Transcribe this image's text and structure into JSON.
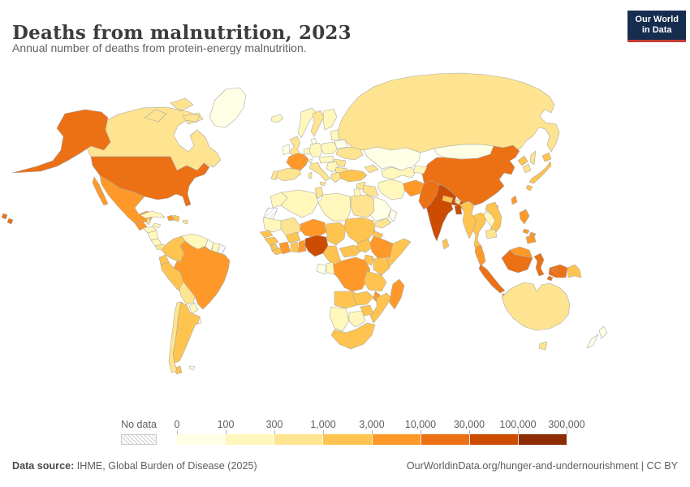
{
  "header": {
    "title": "Deaths from malnutrition, 2023",
    "subtitle": "Annual number of deaths from protein-energy malnutrition.",
    "logo": {
      "line1": "Our World",
      "line2": "in Data",
      "bg_color": "#162D4F",
      "accent_color": "#C53C35"
    }
  },
  "legend": {
    "no_data_label": "No data",
    "tick_labels": [
      "0",
      "100",
      "300",
      "1,000",
      "3,000",
      "10,000",
      "30,000",
      "100,000",
      "300,000"
    ]
  },
  "footer": {
    "datasource_label": "Data source:",
    "datasource_value": " IHME, Global Burden of Disease (2025)",
    "attribution": "OurWorldinData.org/hunger-and-undernourishment | CC BY"
  },
  "chart_data": {
    "type": "heatmap",
    "subtype": "choropleth_world_map",
    "title": "Deaths from malnutrition, 2023",
    "unit": "deaths",
    "scale": "logarithmic bins",
    "legend_position": "bottom",
    "bins": [
      {
        "range": "0–100",
        "color": "#FFFFE5"
      },
      {
        "range": "100–300",
        "color": "#FFF7BC"
      },
      {
        "range": "300–1,000",
        "color": "#FEE391"
      },
      {
        "range": "1,000–3,000",
        "color": "#FEC44F"
      },
      {
        "range": "3,000–10,000",
        "color": "#FE9929"
      },
      {
        "range": "10,000–30,000",
        "color": "#EC7014"
      },
      {
        "range": "30,000–100,000",
        "color": "#CC4C02"
      },
      {
        "range": "100,000–300,000",
        "color": "#8C2D04"
      }
    ],
    "no_data": {
      "label": "No data",
      "pattern": "diagonal-hatch"
    },
    "countries": [
      {
        "id": "greenland",
        "name": "Greenland",
        "bin": 0
      },
      {
        "id": "canada",
        "name": "Canada",
        "bin": 2
      },
      {
        "id": "usa",
        "name": "United States",
        "bin": 5
      },
      {
        "id": "mexico",
        "name": "Mexico",
        "bin": 4
      },
      {
        "id": "guatemala",
        "name": "Guatemala",
        "bin": 4
      },
      {
        "id": "belize",
        "name": "Belize",
        "bin": 2
      },
      {
        "id": "honduras",
        "name": "Honduras",
        "bin": 1
      },
      {
        "id": "nicaragua",
        "name": "Nicaragua",
        "bin": 1
      },
      {
        "id": "costa-rica",
        "name": "Costa Rica",
        "bin": 1
      },
      {
        "id": "panama",
        "name": "Panama",
        "bin": 2
      },
      {
        "id": "cuba",
        "name": "Cuba",
        "bin": 1
      },
      {
        "id": "jamaica",
        "name": "Jamaica",
        "bin": 1
      },
      {
        "id": "haiti",
        "name": "Haiti",
        "bin": 4
      },
      {
        "id": "dominican-republic",
        "name": "Dominican Republic",
        "bin": 3
      },
      {
        "id": "puerto-rico",
        "name": "Puerto Rico",
        "bin": 2
      },
      {
        "id": "colombia",
        "name": "Colombia",
        "bin": 3
      },
      {
        "id": "venezuela",
        "name": "Venezuela",
        "bin": 1
      },
      {
        "id": "guyana",
        "name": "Guyana",
        "bin": 0
      },
      {
        "id": "suriname",
        "name": "Suriname",
        "bin": 1
      },
      {
        "id": "french-guiana",
        "name": "French Guiana",
        "bin": "no-data"
      },
      {
        "id": "ecuador",
        "name": "Ecuador",
        "bin": 3
      },
      {
        "id": "peru",
        "name": "Peru",
        "bin": 3
      },
      {
        "id": "brazil",
        "name": "Brazil",
        "bin": 4
      },
      {
        "id": "bolivia",
        "name": "Bolivia",
        "bin": 2
      },
      {
        "id": "paraguay",
        "name": "Paraguay",
        "bin": 1
      },
      {
        "id": "uruguay",
        "name": "Uruguay",
        "bin": 0
      },
      {
        "id": "chile",
        "name": "Chile",
        "bin": 2
      },
      {
        "id": "argentina",
        "name": "Argentina",
        "bin": 3
      },
      {
        "id": "falkland-islands",
        "name": "Falkland Islands",
        "bin": 0
      },
      {
        "id": "iceland",
        "name": "Iceland",
        "bin": 1
      },
      {
        "id": "norway",
        "name": "Norway",
        "bin": 1
      },
      {
        "id": "sweden",
        "name": "Sweden",
        "bin": 2
      },
      {
        "id": "finland",
        "name": "Finland",
        "bin": 1
      },
      {
        "id": "denmark",
        "name": "Denmark",
        "bin": 0
      },
      {
        "id": "united-kingdom",
        "name": "United Kingdom",
        "bin": 2
      },
      {
        "id": "ireland",
        "name": "Ireland",
        "bin": 0
      },
      {
        "id": "netherlands-belgium",
        "name": "Netherlands / Belgium",
        "bin": 1
      },
      {
        "id": "germany",
        "name": "Germany",
        "bin": 1
      },
      {
        "id": "poland",
        "name": "Poland",
        "bin": 1
      },
      {
        "id": "baltic-states",
        "name": "Baltic states",
        "bin": 1
      },
      {
        "id": "belarus",
        "name": "Belarus",
        "bin": 0
      },
      {
        "id": "ukraine",
        "name": "Ukraine",
        "bin": 2
      },
      {
        "id": "romania",
        "name": "Romania",
        "bin": 2
      },
      {
        "id": "central-europe",
        "name": "Central Europe",
        "bin": 1
      },
      {
        "id": "france",
        "name": "France",
        "bin": 4
      },
      {
        "id": "switzerland",
        "name": "Switzerland",
        "bin": 1
      },
      {
        "id": "spain",
        "name": "Spain",
        "bin": 2
      },
      {
        "id": "portugal",
        "name": "Portugal",
        "bin": 2
      },
      {
        "id": "italy",
        "name": "Italy",
        "bin": 2
      },
      {
        "id": "balkans",
        "name": "Balkans",
        "bin": 1
      },
      {
        "id": "greece",
        "name": "Greece",
        "bin": 2
      },
      {
        "id": "bulgaria",
        "name": "Bulgaria",
        "bin": 2
      },
      {
        "id": "russia",
        "name": "Russia",
        "bin": 2
      },
      {
        "id": "morocco",
        "name": "Morocco",
        "bin": 1
      },
      {
        "id": "western-sahara",
        "name": "Western Sahara",
        "bin": "no-data"
      },
      {
        "id": "algeria",
        "name": "Algeria",
        "bin": 1
      },
      {
        "id": "tunisia",
        "name": "Tunisia",
        "bin": 2
      },
      {
        "id": "libya",
        "name": "Libya",
        "bin": 1
      },
      {
        "id": "egypt",
        "name": "Egypt",
        "bin": 2
      },
      {
        "id": "mauritania",
        "name": "Mauritania",
        "bin": 1
      },
      {
        "id": "mali",
        "name": "Mali",
        "bin": 2
      },
      {
        "id": "niger",
        "name": "Niger",
        "bin": 4
      },
      {
        "id": "chad",
        "name": "Chad",
        "bin": 3
      },
      {
        "id": "sudan",
        "name": "Sudan",
        "bin": 3
      },
      {
        "id": "eritrea",
        "name": "Eritrea",
        "bin": 3
      },
      {
        "id": "senegal",
        "name": "Senegal",
        "bin": 3
      },
      {
        "id": "guinea",
        "name": "Guinea",
        "bin": 3
      },
      {
        "id": "sierra-leone",
        "name": "Sierra Leone",
        "bin": 3
      },
      {
        "id": "liberia",
        "name": "Liberia",
        "bin": 3
      },
      {
        "id": "ivory-coast",
        "name": "Cote d'Ivoire",
        "bin": 4
      },
      {
        "id": "ghana",
        "name": "Ghana",
        "bin": 3
      },
      {
        "id": "togo-benin",
        "name": "Togo / Benin",
        "bin": 4
      },
      {
        "id": "burkina-faso",
        "name": "Burkina Faso",
        "bin": 3
      },
      {
        "id": "nigeria",
        "name": "Nigeria",
        "bin": 6
      },
      {
        "id": "cameroon",
        "name": "Cameroon",
        "bin": 3
      },
      {
        "id": "central-african-republic",
        "name": "Central African Republic",
        "bin": 3
      },
      {
        "id": "south-sudan",
        "name": "South Sudan",
        "bin": 3
      },
      {
        "id": "ethiopia",
        "name": "Ethiopia",
        "bin": 4
      },
      {
        "id": "somalia",
        "name": "Somalia",
        "bin": 3
      },
      {
        "id": "kenya",
        "name": "Kenya",
        "bin": 3
      },
      {
        "id": "uganda",
        "name": "Uganda",
        "bin": 3
      },
      {
        "id": "dr-congo",
        "name": "Democratic Republic of Congo",
        "bin": 4
      },
      {
        "id": "congo",
        "name": "Congo",
        "bin": 1
      },
      {
        "id": "gabon",
        "name": "Gabon",
        "bin": 0
      },
      {
        "id": "tanzania",
        "name": "Tanzania",
        "bin": 3
      },
      {
        "id": "angola",
        "name": "Angola",
        "bin": 3
      },
      {
        "id": "zambia",
        "name": "Zambia",
        "bin": 3
      },
      {
        "id": "malawi",
        "name": "Malawi",
        "bin": 4
      },
      {
        "id": "mozambique",
        "name": "Mozambique",
        "bin": 3
      },
      {
        "id": "zimbabwe",
        "name": "Zimbabwe",
        "bin": 3
      },
      {
        "id": "namibia",
        "name": "Namibia",
        "bin": 1
      },
      {
        "id": "botswana",
        "name": "Botswana",
        "bin": 1
      },
      {
        "id": "south-africa",
        "name": "South Africa",
        "bin": 3
      },
      {
        "id": "madagascar",
        "name": "Madagascar",
        "bin": 4
      },
      {
        "id": "turkey",
        "name": "Turkey",
        "bin": 3
      },
      {
        "id": "syria",
        "name": "Syria",
        "bin": 2
      },
      {
        "id": "iraq",
        "name": "Iraq",
        "bin": 2
      },
      {
        "id": "israel-jordan",
        "name": "Israel / Jordan",
        "bin": 1
      },
      {
        "id": "saudi-arabia",
        "name": "Saudi Arabia",
        "bin": 0
      },
      {
        "id": "yemen",
        "name": "Yemen",
        "bin": 2
      },
      {
        "id": "oman",
        "name": "Oman",
        "bin": 0
      },
      {
        "id": "iran",
        "name": "Iran",
        "bin": 1
      },
      {
        "id": "caucasus",
        "name": "Caucasus",
        "bin": 2
      },
      {
        "id": "kazakhstan",
        "name": "Kazakhstan",
        "bin": 0
      },
      {
        "id": "uzbekistan-turkmenistan",
        "name": "Uzbekistan / Turkmenistan",
        "bin": 1
      },
      {
        "id": "kyrgyzstan-tajikistan",
        "name": "Kyrgyzstan / Tajikistan",
        "bin": 1
      },
      {
        "id": "afghanistan",
        "name": "Afghanistan",
        "bin": 4
      },
      {
        "id": "pakistan",
        "name": "Pakistan",
        "bin": 5
      },
      {
        "id": "india",
        "name": "India",
        "bin": 6
      },
      {
        "id": "nepal",
        "name": "Nepal",
        "bin": 3
      },
      {
        "id": "bhutan",
        "name": "Bhutan",
        "bin": 2
      },
      {
        "id": "bangladesh",
        "name": "Bangladesh",
        "bin": 6
      },
      {
        "id": "sri-lanka",
        "name": "Sri Lanka",
        "bin": 3
      },
      {
        "id": "myanmar",
        "name": "Myanmar",
        "bin": 3
      },
      {
        "id": "thailand",
        "name": "Thailand",
        "bin": 3
      },
      {
        "id": "laos",
        "name": "Laos",
        "bin": 1
      },
      {
        "id": "vietnam",
        "name": "Vietnam",
        "bin": 3
      },
      {
        "id": "cambodia",
        "name": "Cambodia",
        "bin": 2
      },
      {
        "id": "malaysia",
        "name": "Malaysia",
        "bin": 4
      },
      {
        "id": "indonesia",
        "name": "Indonesia",
        "bin": 5
      },
      {
        "id": "papua-new-guinea",
        "name": "Papua New Guinea",
        "bin": 3
      },
      {
        "id": "philippines",
        "name": "Philippines",
        "bin": 4
      },
      {
        "id": "taiwan",
        "name": "Taiwan",
        "bin": 4
      },
      {
        "id": "china",
        "name": "China",
        "bin": 5
      },
      {
        "id": "mongolia",
        "name": "Mongolia",
        "bin": 0
      },
      {
        "id": "north-korea",
        "name": "North Korea",
        "bin": 3
      },
      {
        "id": "south-korea",
        "name": "South Korea",
        "bin": 2
      },
      {
        "id": "japan",
        "name": "Japan",
        "bin": 3
      },
      {
        "id": "australia",
        "name": "Australia",
        "bin": 2
      },
      {
        "id": "new-zealand",
        "name": "New Zealand",
        "bin": 0
      }
    ]
  }
}
